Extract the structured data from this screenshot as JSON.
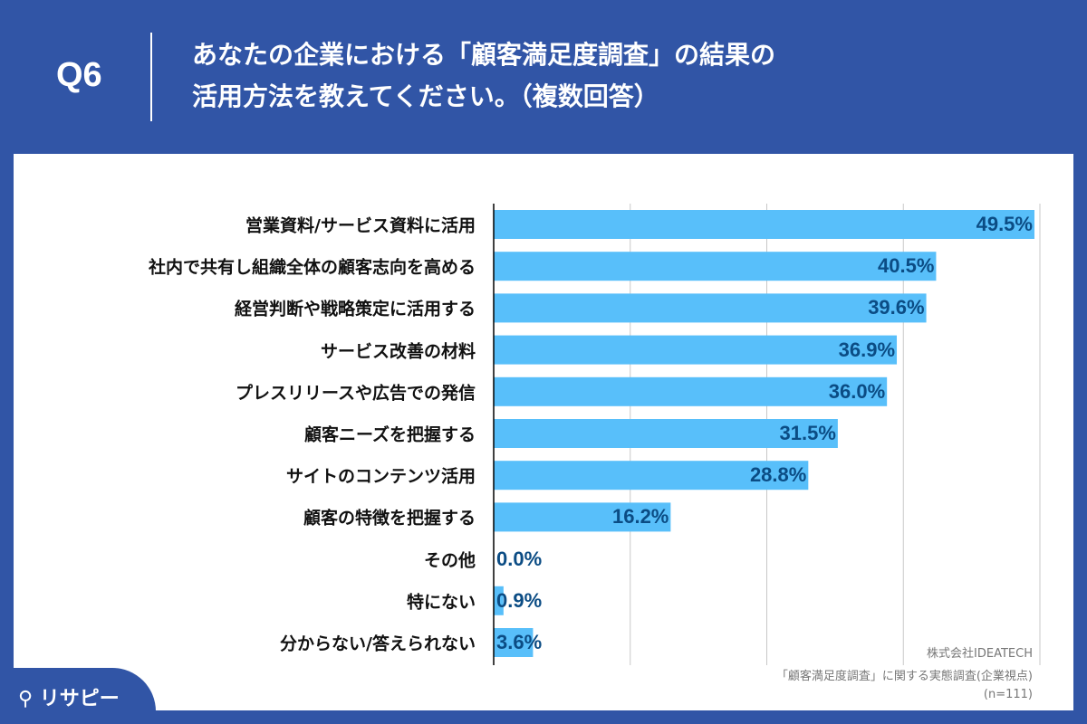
{
  "header": {
    "question": "Q6",
    "title_line1": "あなたの企業における「顧客満足度調査」の結果の",
    "title_line2": "活用方法を教えてください。（複数回答）"
  },
  "logo": "リサピー",
  "source": {
    "company": "株式会社IDEATECH",
    "survey": "「顧客満足度調査」に関する実態調査(企業視点)",
    "n": "(n=111)"
  },
  "colors": {
    "background": "#3155a6",
    "bar": "#58bffa",
    "label": "#0b4c84"
  },
  "chart_data": {
    "type": "bar",
    "orientation": "horizontal",
    "xlim": [
      0,
      50
    ],
    "grid": true,
    "unit": "%",
    "categories": [
      "営業資料/サービス資料に活用",
      "社内で共有し組織全体の顧客志向を高める",
      "経営判断や戦略策定に活用する",
      "サービス改善の材料",
      "プレスリリースや広告での発信",
      "顧客ニーズを把握する",
      "サイトのコンテンツ活用",
      "顧客の特徴を把握する",
      "その他",
      "特にない",
      "分からない/答えられない"
    ],
    "values": [
      49.5,
      40.5,
      39.6,
      36.9,
      36.0,
      31.5,
      28.8,
      16.2,
      0.0,
      0.9,
      3.6
    ],
    "labels": [
      "49.5%",
      "40.5%",
      "39.6%",
      "36.9%",
      "36.0%",
      "31.5%",
      "28.8%",
      "16.2%",
      "0.0%",
      "0.9%",
      "3.6%"
    ]
  }
}
